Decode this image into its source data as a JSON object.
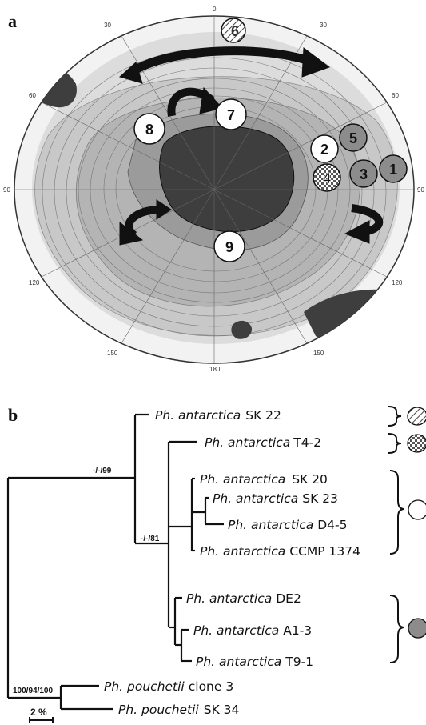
{
  "panels": {
    "a": "a",
    "b": "b"
  },
  "map": {
    "degree_labels": [
      "0",
      "30",
      "60",
      "90",
      "120",
      "150",
      "180",
      "150",
      "120",
      "90",
      "60",
      "30"
    ],
    "sites": [
      {
        "id": "6",
        "fill": "hatched"
      },
      {
        "id": "7",
        "fill": "white"
      },
      {
        "id": "8",
        "fill": "white"
      },
      {
        "id": "2",
        "fill": "white"
      },
      {
        "id": "5",
        "fill": "grey"
      },
      {
        "id": "1",
        "fill": "grey"
      },
      {
        "id": "3",
        "fill": "grey"
      },
      {
        "id": "4",
        "fill": "checkered"
      },
      {
        "id": "9",
        "fill": "white"
      }
    ],
    "arrows": [
      "current-arrow",
      "current-arrow",
      "current-arrow",
      "current-arrow"
    ],
    "colors": {
      "shelf": "#9b9b9b",
      "deep": "#c9c9c9",
      "land": "#3e3e3e",
      "ocean_light": "#ececec"
    }
  },
  "tree": {
    "taxa": [
      {
        "genus": "Ph. antarctica",
        "strain": "SK 22"
      },
      {
        "genus": "Ph. antarctica",
        "strain": "T4-2"
      },
      {
        "genus": "Ph. antarctica",
        "strain": "SK 20"
      },
      {
        "genus": "Ph. antarctica",
        "strain": "SK 23"
      },
      {
        "genus": "Ph. antarctica",
        "strain": "D4-5"
      },
      {
        "genus": "Ph. antarctica",
        "strain": "CCMP 1374"
      },
      {
        "genus": "Ph. antarctica",
        "strain": "DE2"
      },
      {
        "genus": "Ph. antarctica",
        "strain": "A1-3"
      },
      {
        "genus": "Ph. antarctica",
        "strain": "T9-1"
      },
      {
        "genus": "Ph. pouchetii",
        "strain": "clone 3"
      },
      {
        "genus": "Ph. pouchetii",
        "strain": "SK 34"
      }
    ],
    "support": {
      "node_top": "-/-/99",
      "node_mid": "-/-/81",
      "node_root": "100/94/100"
    },
    "scale_bar": "2 %",
    "groups": [
      "hatched",
      "checkered",
      "white",
      "grey"
    ]
  }
}
